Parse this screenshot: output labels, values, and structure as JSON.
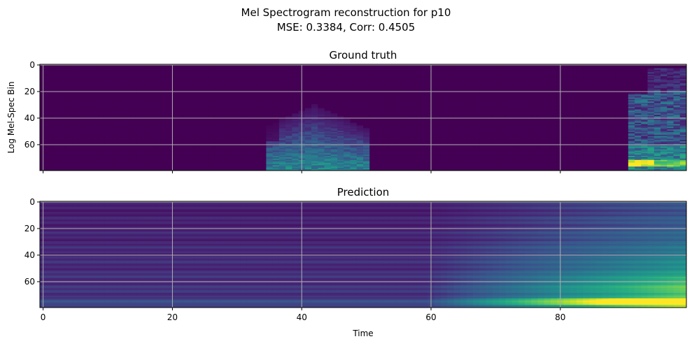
{
  "figure": {
    "title_line1": "Mel Spectrogram reconstruction for p10",
    "title_line2": "MSE: 0.3384, Corr: 0.4505"
  },
  "chart_data": [
    {
      "type": "heatmap",
      "title": "Ground truth",
      "xlabel": "",
      "ylabel": "Log Mel-Spec Bin",
      "xlim": [
        0,
        99
      ],
      "ylim": [
        79,
        0
      ],
      "x_ticks": [
        0,
        20,
        40,
        60,
        80
      ],
      "y_ticks": [
        0,
        20,
        40,
        60
      ],
      "x_tick_labels_visible": false,
      "grid": true,
      "colormap": "viridis",
      "regions": [
        {
          "x_range": [
            35,
            50
          ],
          "bin_range": [
            28,
            79
          ],
          "peak_level": 0.45
        },
        {
          "x_range": [
            91,
            99
          ],
          "bin_range": [
            3,
            79
          ],
          "peak_level": 0.95
        }
      ]
    },
    {
      "type": "heatmap",
      "title": "Prediction",
      "xlabel": "Time",
      "ylabel": "",
      "xlim": [
        0,
        99
      ],
      "ylim": [
        79,
        0
      ],
      "x_ticks": [
        0,
        20,
        40,
        60,
        80
      ],
      "y_ticks": [
        0,
        20,
        40,
        60
      ],
      "x_tick_labels_visible": true,
      "grid": true,
      "colormap": "viridis",
      "trend": "intensity rises toward later time and higher bin index; peak near bins 73-77 at time 90-99",
      "peak_level": 0.95
    }
  ],
  "colors": {
    "viridis_low": "#440154",
    "viridis_mid": "#21918c",
    "viridis_high": "#fde725",
    "grid": "#b0b0b0"
  }
}
